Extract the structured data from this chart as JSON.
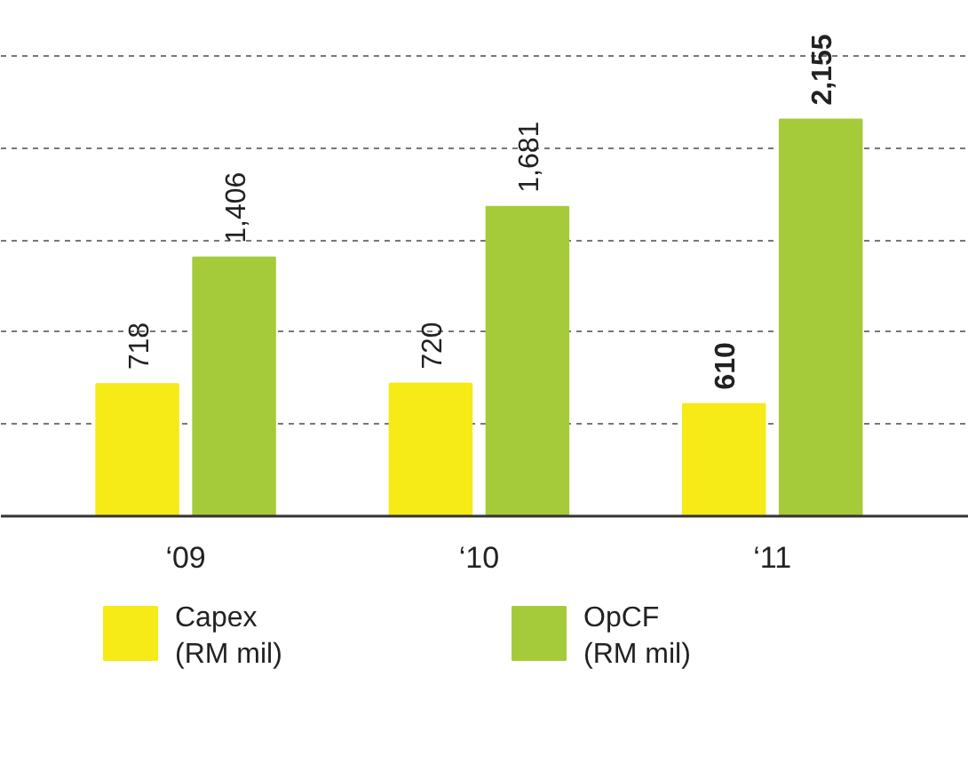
{
  "chart_data": {
    "type": "bar",
    "categories": [
      "‘09",
      "‘10",
      "‘11"
    ],
    "series": [
      {
        "name": "Capex\n(RM mil)",
        "color": "#f6ea17",
        "values": [
          718,
          720,
          610
        ],
        "value_labels": [
          "718",
          "720",
          "610"
        ]
      },
      {
        "name": "OpCF\n(RM mil)",
        "color": "#a5cb3a",
        "values": [
          1406,
          1681,
          2155
        ],
        "value_labels": [
          "1,406",
          "1,681",
          "2,155"
        ]
      }
    ],
    "yticks": [
      {
        "value": 500,
        "label": null
      },
      {
        "value": 1000,
        "label": null
      },
      {
        "value": 1500,
        "label": null
      },
      {
        "value": 2000,
        "label": null
      },
      {
        "value": 2500,
        "label": null
      }
    ],
    "grid": "y",
    "tick_labels": "x",
    "legend": "bottom"
  }
}
